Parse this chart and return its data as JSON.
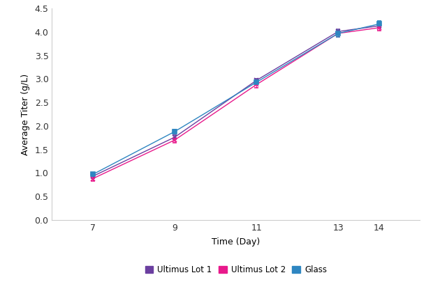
{
  "days": [
    7,
    9,
    11,
    13,
    14
  ],
  "series": [
    {
      "label": "Ultimus Lot 1",
      "color": "#6B3FA0",
      "marker": "x",
      "values": [
        0.93,
        1.76,
        2.97,
        4.01,
        4.13
      ],
      "errors": [
        0.04,
        0.04,
        0.04,
        0.05,
        0.04
      ]
    },
    {
      "label": "Ultimus Lot 2",
      "color": "#E8198B",
      "marker": "x",
      "values": [
        0.88,
        1.7,
        2.88,
        3.97,
        4.09
      ],
      "errors": [
        0.05,
        0.05,
        0.06,
        0.07,
        0.06
      ]
    },
    {
      "label": "Glass",
      "color": "#2E86C1",
      "marker": "s",
      "values": [
        0.97,
        1.88,
        2.93,
        3.97,
        4.17
      ],
      "errors": [
        0.04,
        0.05,
        0.04,
        0.07,
        0.07
      ]
    }
  ],
  "xlabel": "Time (Day)",
  "ylabel": "Average Titer (g/L)",
  "ylim": [
    0.0,
    4.5
  ],
  "yticks": [
    0.0,
    0.5,
    1.0,
    1.5,
    2.0,
    2.5,
    3.0,
    3.5,
    4.0,
    4.5
  ],
  "xticks": [
    7,
    9,
    11,
    13,
    14
  ],
  "background_color": "#ffffff",
  "markersize": 5,
  "linewidth": 1.0,
  "capsize": 2,
  "elinewidth": 0.8,
  "legend_colors": [
    "#6B3FA0",
    "#E8198B",
    "#2E86C1"
  ],
  "legend_labels": [
    "Ultimus Lot 1",
    "Ultimus Lot 2",
    "Glass"
  ]
}
